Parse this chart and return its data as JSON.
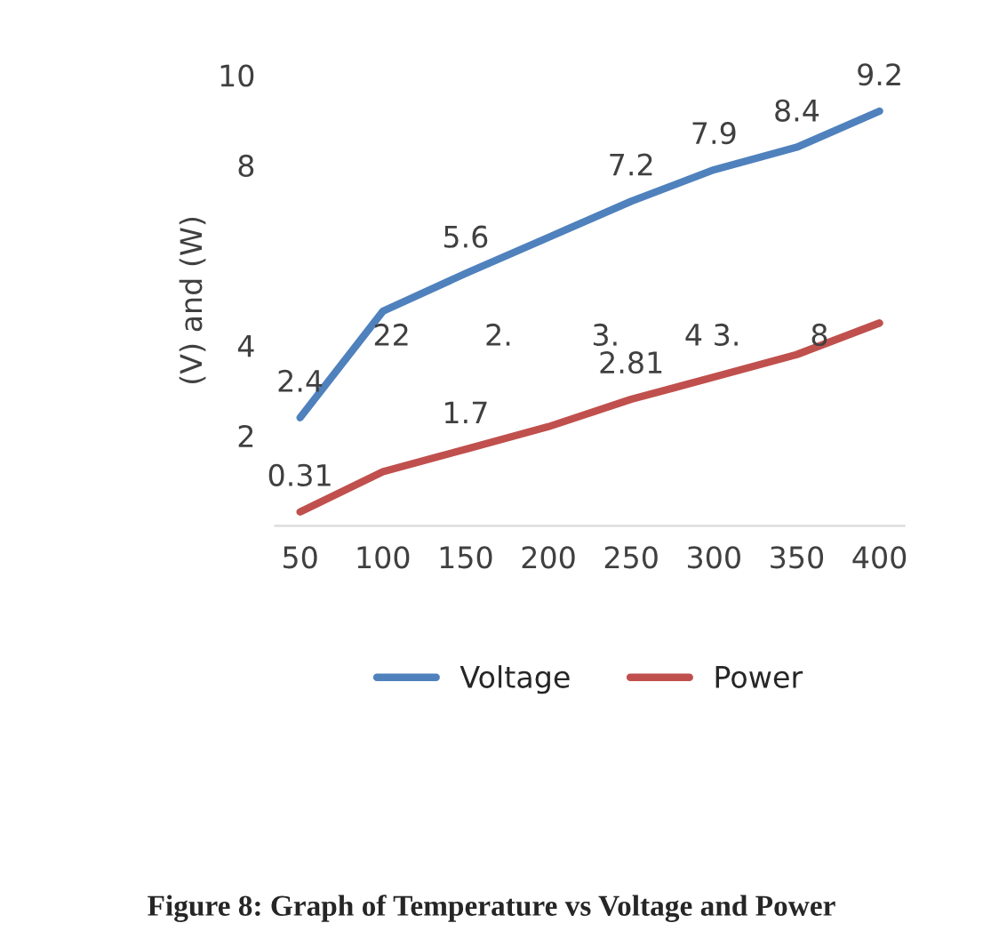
{
  "chart_data": {
    "type": "line",
    "title": "Figure 8: Graph of Temperature vs Voltage and Power",
    "ylabel": "(V) and (W)",
    "categories": [
      "50",
      "100",
      "150",
      "200",
      "250",
      "300",
      "350",
      "400"
    ],
    "series": [
      {
        "name": "Voltage",
        "color": "#4f81bd",
        "values": [
          2.4,
          4.76,
          5.6,
          6.4,
          7.2,
          7.9,
          8.4,
          9.2
        ],
        "value_labels": [
          "2.4",
          null,
          "5.6",
          null,
          "7.2",
          "7.9",
          "8.4",
          "9.2"
        ]
      },
      {
        "name": "Power",
        "color": "#c0504d",
        "values": [
          0.31,
          1.2,
          1.7,
          2.2,
          2.81,
          3.3,
          3.8,
          4.5
        ],
        "value_labels": [
          "0.31",
          null,
          "1.7",
          null,
          "2.81",
          null,
          null,
          null
        ]
      }
    ],
    "annotations": [
      "22",
      "2.",
      "3.",
      "4 3.",
      "8"
    ],
    "ylim": [
      0,
      10
    ],
    "yticks": [
      2,
      4,
      8,
      10
    ],
    "grid": false,
    "legend": "bottom",
    "marker": "none",
    "line_style": "solid"
  }
}
